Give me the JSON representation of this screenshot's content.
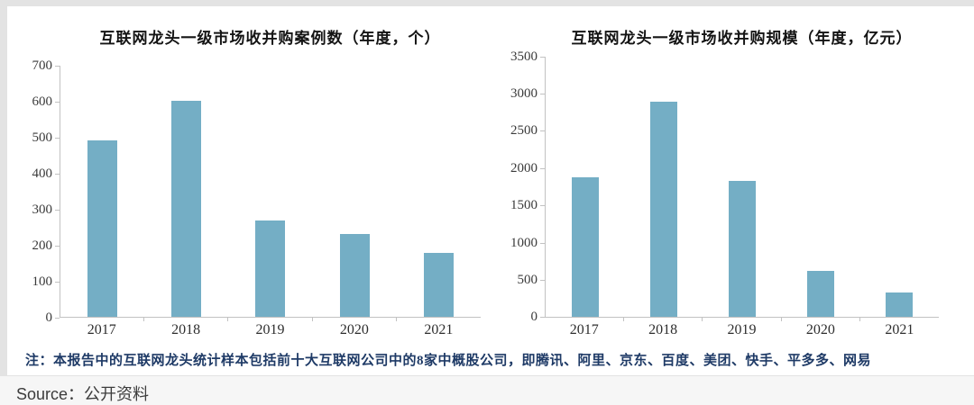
{
  "page": {
    "note": "注：本报告中的互联网龙头统计样本包括前十大互联网公司中的8家中概股公司，即腾讯、阿里、京东、百度、美团、快手、平多多、网易",
    "source_label": "Source：公开资料"
  },
  "colors": {
    "bar": "#74aec5",
    "axis": "#c2c2c2",
    "title_text": "#141414",
    "note_text": "#1e3a66"
  },
  "chart_data": [
    {
      "type": "bar",
      "title": "互联网龙头一级市场收并购案例数（年度，个）",
      "categories": [
        "2017",
        "2018",
        "2019",
        "2020",
        "2021"
      ],
      "values": [
        493,
        602,
        268,
        230,
        178
      ],
      "xlabel": "",
      "ylabel": "",
      "ylim": [
        0,
        700
      ],
      "ytick_step": 100,
      "grid": false,
      "legend": "none"
    },
    {
      "type": "bar",
      "title": "互联网龙头一级市场收并购规模（年度，亿元）",
      "categories": [
        "2017",
        "2018",
        "2019",
        "2020",
        "2021"
      ],
      "values": [
        1880,
        2890,
        1830,
        615,
        325
      ],
      "xlabel": "",
      "ylabel": "",
      "ylim": [
        0,
        3500
      ],
      "ytick_step": 500,
      "grid": false,
      "legend": "none"
    }
  ]
}
